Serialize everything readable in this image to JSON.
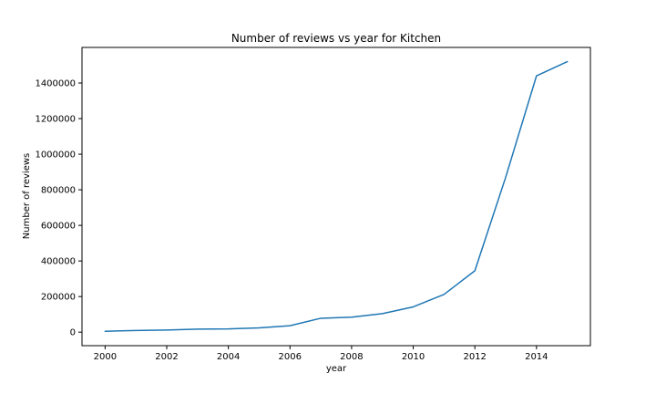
{
  "chart_data": {
    "type": "line",
    "title": "Number of reviews vs year for Kitchen",
    "xlabel": "year",
    "ylabel": "Number of reviews",
    "x": [
      2000,
      2001,
      2002,
      2003,
      2004,
      2005,
      2006,
      2007,
      2008,
      2009,
      2010,
      2011,
      2012,
      2013,
      2014,
      2015
    ],
    "series": [
      {
        "values": [
          5000,
          9000,
          12000,
          17000,
          18000,
          24000,
          36000,
          78000,
          84000,
          104000,
          142000,
          212000,
          345000,
          870000,
          1440000,
          1520000
        ],
        "color": "#1f77b4"
      }
    ],
    "xlim": [
      1999.25,
      2015.75
    ],
    "ylim": [
      -76000,
      1600000
    ],
    "xticks": [
      2000,
      2002,
      2004,
      2006,
      2008,
      2010,
      2012,
      2014
    ],
    "xtick_labels": [
      "2000",
      "2002",
      "2004",
      "2006",
      "2008",
      "2010",
      "2012",
      "2014"
    ],
    "yticks": [
      0,
      200000,
      400000,
      600000,
      800000,
      1000000,
      1200000,
      1400000
    ],
    "ytick_labels": [
      "0",
      "200000",
      "400000",
      "600000",
      "800000",
      "1000000",
      "1200000",
      "1400000"
    ],
    "grid": false,
    "legend": "none"
  }
}
